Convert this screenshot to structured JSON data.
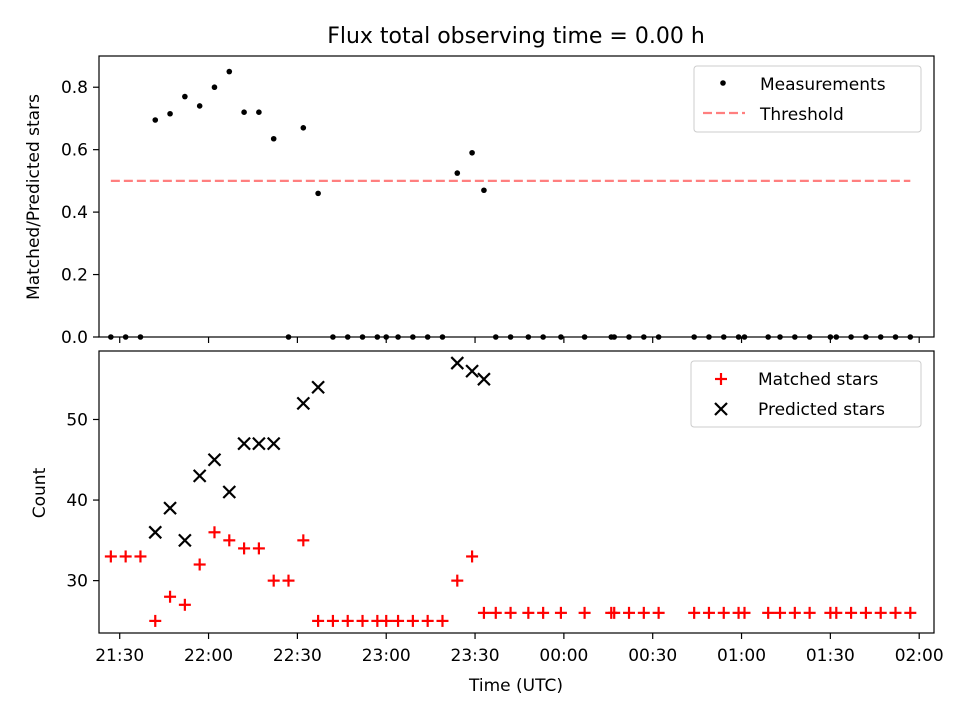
{
  "chart_data": [
    {
      "type": "scatter",
      "title": "Flux total observing time = 0.00 h",
      "xlabel": "",
      "ylabel": "Matched/Predicted stars",
      "xlim": [
        "21:23",
        "02:05"
      ],
      "ylim": [
        0,
        0.9
      ],
      "yticks": [
        0.0,
        0.2,
        0.4,
        0.6,
        0.8
      ],
      "ytick_labels": [
        "0.0",
        "0.2",
        "0.4",
        "0.6",
        "0.8"
      ],
      "legend_position": "top-right",
      "series": [
        {
          "name": "Measurements",
          "kind": "scatter",
          "marker": "dot",
          "color": "#000000",
          "x": [
            "21:27",
            "21:32",
            "21:37",
            "21:42",
            "21:47",
            "21:52",
            "21:57",
            "22:02",
            "22:07",
            "22:12",
            "22:17",
            "22:22",
            "22:27",
            "22:32",
            "22:37",
            "22:42",
            "22:47",
            "22:52",
            "22:57",
            "23:00",
            "23:04",
            "23:09",
            "23:14",
            "23:19",
            "23:24",
            "23:29",
            "23:33",
            "23:37",
            "23:42",
            "23:48",
            "23:53",
            "23:59",
            "00:07",
            "00:16",
            "00:17",
            "00:22",
            "00:27",
            "00:32",
            "00:44",
            "00:49",
            "00:54",
            "00:59",
            "01:01",
            "01:09",
            "01:13",
            "01:18",
            "01:23",
            "01:30",
            "01:32",
            "01:37",
            "01:42",
            "01:47",
            "01:52",
            "01:57"
          ],
          "y": [
            0.0,
            0.0,
            0.0,
            0.695,
            0.715,
            0.77,
            0.74,
            0.8,
            0.85,
            0.72,
            0.72,
            0.635,
            0.0,
            0.67,
            0.46,
            0.0,
            0.0,
            0.0,
            0.0,
            0.0,
            0.0,
            0.0,
            0.0,
            0.0,
            0.525,
            0.59,
            0.47,
            0.0,
            0.0,
            0.0,
            0.0,
            0.0,
            0.0,
            0.0,
            0.0,
            0.0,
            0.0,
            0.0,
            0.0,
            0.0,
            0.0,
            0.0,
            0.0,
            0.0,
            0.0,
            0.0,
            0.0,
            0.0,
            0.0,
            0.0,
            0.0,
            0.0,
            0.0,
            0.0
          ]
        },
        {
          "name": "Threshold",
          "kind": "line",
          "style": "dashed",
          "color": "#ff7f7f",
          "x": [
            "21:27",
            "01:57"
          ],
          "y": [
            0.5,
            0.5
          ]
        }
      ]
    },
    {
      "type": "scatter",
      "title": "",
      "xlabel": "Time (UTC)",
      "ylabel": "Count",
      "xlim": [
        "21:23",
        "02:05"
      ],
      "ylim": [
        23.5,
        58.5
      ],
      "yticks": [
        30,
        40,
        50
      ],
      "ytick_labels": [
        "30",
        "40",
        "50"
      ],
      "xticks": [
        "21:30",
        "22:00",
        "22:30",
        "23:00",
        "23:30",
        "00:00",
        "00:30",
        "01:00",
        "01:30",
        "02:00"
      ],
      "legend_position": "top-right",
      "series": [
        {
          "name": "Matched stars",
          "marker": "plus",
          "color": "#ff0000",
          "x": [
            "21:27",
            "21:32",
            "21:37",
            "21:42",
            "21:47",
            "21:52",
            "21:57",
            "22:02",
            "22:07",
            "22:12",
            "22:17",
            "22:22",
            "22:27",
            "22:32",
            "22:37",
            "22:42",
            "22:47",
            "22:52",
            "22:57",
            "23:00",
            "23:04",
            "23:09",
            "23:14",
            "23:19",
            "23:24",
            "23:29",
            "23:33",
            "23:37",
            "23:42",
            "23:48",
            "23:53",
            "23:59",
            "00:07",
            "00:16",
            "00:17",
            "00:22",
            "00:27",
            "00:32",
            "00:44",
            "00:49",
            "00:54",
            "00:59",
            "01:01",
            "01:09",
            "01:13",
            "01:18",
            "01:23",
            "01:30",
            "01:32",
            "01:37",
            "01:42",
            "01:47",
            "01:52",
            "01:57"
          ],
          "y": [
            33,
            33,
            33,
            25,
            28,
            27,
            32,
            36,
            35,
            34,
            34,
            30,
            30,
            35,
            25,
            25,
            25,
            25,
            25,
            25,
            25,
            25,
            25,
            25,
            30,
            33,
            26,
            26,
            26,
            26,
            26,
            26,
            26,
            26,
            26,
            26,
            26,
            26,
            26,
            26,
            26,
            26,
            26,
            26,
            26,
            26,
            26,
            26,
            26,
            26,
            26,
            26,
            26,
            26
          ]
        },
        {
          "name": "Predicted stars",
          "marker": "x",
          "color": "#000000",
          "x": [
            "21:42",
            "21:47",
            "21:52",
            "21:57",
            "22:02",
            "22:07",
            "22:12",
            "22:17",
            "22:22",
            "22:32",
            "22:37",
            "23:24",
            "23:29",
            "23:33"
          ],
          "y": [
            36,
            39,
            35,
            43,
            45,
            41,
            47,
            47,
            47,
            52,
            54,
            57,
            56,
            55
          ]
        }
      ]
    }
  ]
}
